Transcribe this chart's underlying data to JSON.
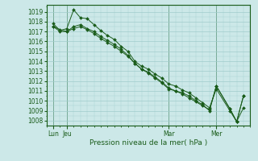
{
  "xlabel": "Pression niveau de la mer( hPa )",
  "bg_color": "#cce8e8",
  "grid_color": "#a0cccc",
  "line_color": "#1a5c1a",
  "ylim": [
    1007.5,
    1019.7
  ],
  "yticks": [
    1008,
    1009,
    1010,
    1011,
    1012,
    1013,
    1014,
    1015,
    1016,
    1017,
    1018,
    1019
  ],
  "xlim": [
    0,
    30
  ],
  "day_ticks": [
    1,
    3,
    18,
    25
  ],
  "day_labels": [
    "Lun",
    "Jeu",
    "Mar",
    "Mer"
  ],
  "vline_positions": [
    1,
    3,
    18,
    25
  ],
  "lines": [
    {
      "x": [
        1,
        2,
        3,
        4,
        5,
        6,
        7,
        8,
        9,
        10,
        11,
        12,
        13,
        14,
        15,
        16,
        17,
        18,
        19,
        20,
        21,
        22,
        23,
        24,
        25,
        27,
        28,
        29
      ],
      "y": [
        1017.8,
        1017.1,
        1017.3,
        1019.2,
        1018.4,
        1018.3,
        1017.7,
        1017.1,
        1016.6,
        1016.2,
        1015.5,
        1015.0,
        1014.0,
        1013.5,
        1013.2,
        1012.7,
        1012.3,
        1011.7,
        1011.5,
        1011.1,
        1010.8,
        1010.3,
        1009.8,
        1009.3,
        1011.2,
        1009.0,
        1007.9,
        1009.3
      ]
    },
    {
      "x": [
        1,
        2,
        3,
        4,
        5,
        6,
        7,
        8,
        9,
        10,
        11,
        12,
        13,
        14,
        15,
        16,
        17,
        18,
        19,
        20,
        21,
        22,
        23,
        24,
        25,
        27,
        28,
        29
      ],
      "y": [
        1017.5,
        1017.0,
        1017.0,
        1017.5,
        1017.7,
        1017.3,
        1017.0,
        1016.5,
        1016.1,
        1015.7,
        1015.2,
        1014.6,
        1013.8,
        1013.2,
        1012.9,
        1012.4,
        1011.9,
        1011.3,
        1011.0,
        1010.7,
        1010.3,
        1009.9,
        1009.5,
        1009.1,
        1011.5,
        1009.2,
        1007.9,
        1010.5
      ]
    },
    {
      "x": [
        1,
        2,
        3,
        4,
        5,
        6,
        7,
        8,
        9,
        10,
        11,
        12,
        13,
        14,
        15,
        16,
        17,
        18,
        19,
        20,
        21,
        22,
        23,
        24,
        25,
        27,
        28,
        29
      ],
      "y": [
        1017.5,
        1017.2,
        1017.0,
        1017.3,
        1017.5,
        1017.2,
        1016.8,
        1016.3,
        1015.9,
        1015.5,
        1015.0,
        1014.5,
        1013.8,
        1013.2,
        1012.8,
        1012.3,
        1011.8,
        1011.2,
        1011.0,
        1010.8,
        1010.5,
        1010.0,
        1009.6,
        1009.0,
        1011.5,
        1009.2,
        1007.9,
        1010.5
      ]
    }
  ]
}
